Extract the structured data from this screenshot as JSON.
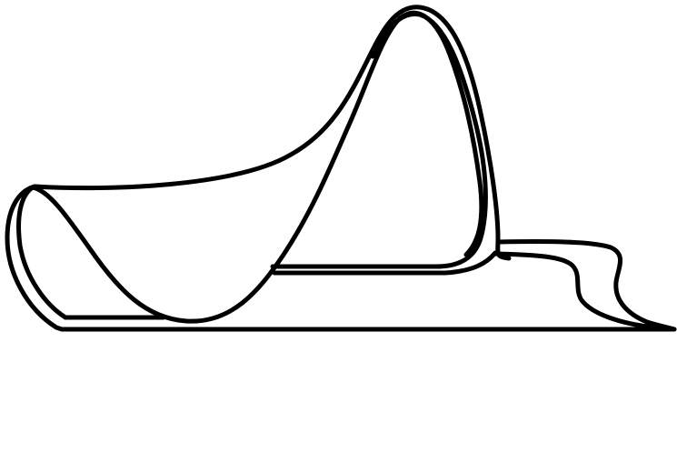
{
  "drawing": {
    "subject": "line-art-curved-shapes",
    "colors": {
      "background": "#ffffff",
      "stroke": "#000000"
    },
    "shapes": [
      {
        "name": "outer-loop-outline"
      },
      {
        "name": "inner-loop-outline"
      },
      {
        "name": "base-line"
      },
      {
        "name": "right-tail-curve"
      },
      {
        "name": "inner-floor-line"
      },
      {
        "name": "left-floor-line"
      }
    ]
  }
}
